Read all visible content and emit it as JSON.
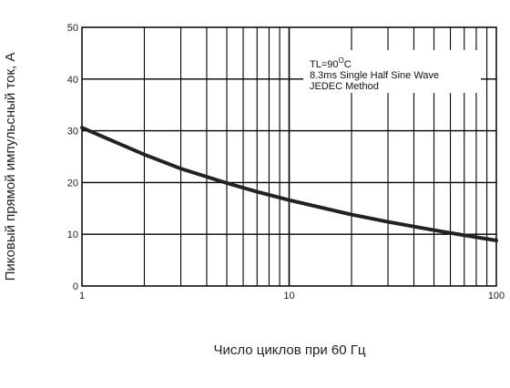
{
  "chart_data": {
    "type": "line",
    "title": "",
    "xlabel": "Число циклов при 60 Гц",
    "ylabel": "Пиковый прямой импульсный ток, А",
    "x_scale": "log",
    "xlim": [
      1,
      100
    ],
    "ylim": [
      0,
      50
    ],
    "x_ticks": [
      "1",
      "10",
      "100"
    ],
    "y_ticks": [
      "0",
      "10",
      "20",
      "30",
      "40",
      "50"
    ],
    "grid": true,
    "annotation": {
      "line1_prefix": "TL=90",
      "line1_superscript": "O",
      "line1_suffix": "C",
      "line2": "8.3ms Single Half Sine Wave",
      "line3": "JEDEC Method"
    },
    "series": [
      {
        "x": [
          1,
          2,
          3,
          5,
          7,
          10,
          20,
          30,
          50,
          70,
          100
        ],
        "y": [
          30.6,
          25.4,
          22.7,
          19.9,
          18.2,
          16.6,
          13.8,
          12.4,
          10.8,
          9.8,
          8.8
        ]
      }
    ]
  }
}
